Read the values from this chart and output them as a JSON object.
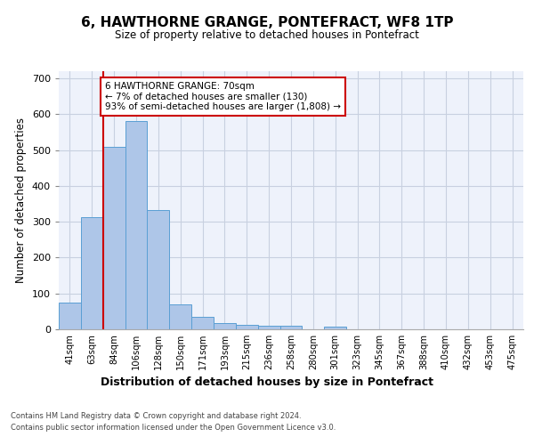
{
  "title": "6, HAWTHORNE GRANGE, PONTEFRACT, WF8 1TP",
  "subtitle": "Size of property relative to detached houses in Pontefract",
  "xlabel": "Distribution of detached houses by size in Pontefract",
  "ylabel": "Number of detached properties",
  "bar_color": "#aec6e8",
  "bar_edge_color": "#5a9fd4",
  "background_color": "#eef2fb",
  "grid_color": "#c8d0e0",
  "categories": [
    "41sqm",
    "63sqm",
    "84sqm",
    "106sqm",
    "128sqm",
    "150sqm",
    "171sqm",
    "193sqm",
    "215sqm",
    "236sqm",
    "258sqm",
    "280sqm",
    "301sqm",
    "323sqm",
    "345sqm",
    "367sqm",
    "388sqm",
    "410sqm",
    "432sqm",
    "453sqm",
    "475sqm"
  ],
  "values": [
    75,
    312,
    510,
    580,
    332,
    70,
    35,
    18,
    12,
    11,
    11,
    0,
    8,
    0,
    0,
    0,
    0,
    0,
    0,
    0,
    0
  ],
  "ylim": [
    0,
    720
  ],
  "yticks": [
    0,
    100,
    200,
    300,
    400,
    500,
    600,
    700
  ],
  "annotation_text": "6 HAWTHORNE GRANGE: 70sqm\n← 7% of detached houses are smaller (130)\n93% of semi-detached houses are larger (1,808) →",
  "annotation_box_color": "#ffffff",
  "annotation_box_edge_color": "#cc0000",
  "property_line_color": "#cc0000",
  "property_line_xindex": 1.5,
  "footer_line1": "Contains HM Land Registry data © Crown copyright and database right 2024.",
  "footer_line2": "Contains public sector information licensed under the Open Government Licence v3.0."
}
